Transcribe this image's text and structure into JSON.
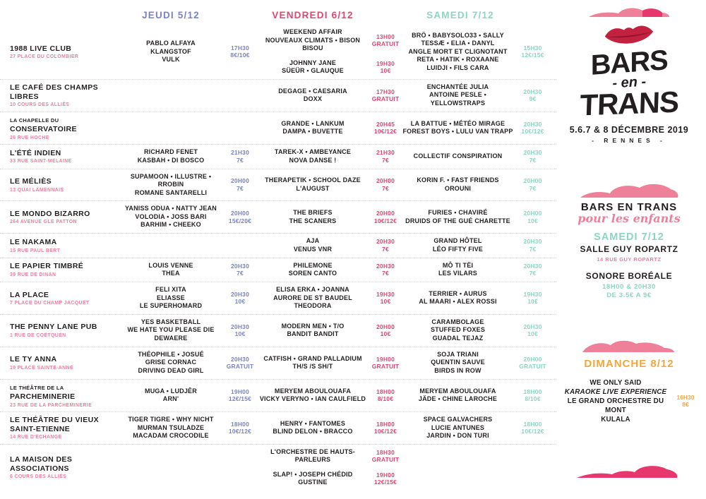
{
  "colors": {
    "jeudi": "#7b82c5",
    "vendredi": "#e2456e",
    "samedi": "#8bd5c2",
    "dimanche": "#f0a73e",
    "address": "#ee7f9b",
    "ink": "#231f20",
    "lips": "#c2223f",
    "cloud_light": "#ef8099",
    "cloud_dark": "#e6386e"
  },
  "days": [
    {
      "id": "jeudi",
      "label": "JEUDI 5/12",
      "color": "#7b82c5"
    },
    {
      "id": "vendredi",
      "label": "VENDREDI 6/12",
      "color": "#e2456e"
    },
    {
      "id": "samedi",
      "label": "SAMEDI 7/12",
      "color": "#8bd5c2"
    }
  ],
  "venues": [
    {
      "name": "1988 LIVE CLUB",
      "address": "27 PLACE DU COLOMBIER",
      "jeudi": [
        {
          "artists": [
            "PABLO ALFAYA",
            "KLANGSTOF",
            "VULK"
          ],
          "time": "17H30",
          "price": "8€/10€"
        }
      ],
      "vendredi": [
        {
          "artists": [
            "WEEKEND AFFAIR",
            "NOUVEAUX CLIMATS • BISON BISOU"
          ],
          "time": "13H00",
          "price": "GRATUIT"
        },
        {
          "artists": [
            "JOHNNY JANE",
            "SÜEÜR • GLAUQUE"
          ],
          "time": "19H30",
          "price": "10€"
        }
      ],
      "samedi": [
        {
          "artists": [
            "BRÖ • BABYSOLO33 • SALLY",
            "TESSÆ • ELIA • DANYL",
            "ANGLE MORT ET CLIGNOTANT",
            "RETA • HATIK • ROXAANE",
            "LUIDJI • FILS CARA"
          ],
          "time": "15H30",
          "price": "12€/15€"
        }
      ]
    },
    {
      "name": "LE CAFÉ DES CHAMPS LIBRES",
      "address": "10 COURS DES ALLIÉS",
      "jeudi": [],
      "vendredi": [
        {
          "artists": [
            "DEGAGE • CAESARIA",
            "DOXX"
          ],
          "time": "17H30",
          "price": "GRATUIT"
        }
      ],
      "samedi": [
        {
          "artists": [
            "ENCHANTÉE JULIA",
            "ANTOINE PESLE • YELLOWSTRAPS"
          ],
          "time": "20H30",
          "price": "9€"
        }
      ]
    },
    {
      "name_small": "LA CHAPELLE DU",
      "name": "CONSERVATOIRE",
      "address": "26 RUE HOCHE",
      "jeudi": [],
      "vendredi": [
        {
          "artists": [
            "GRANDE • LANKUM",
            "DAMPA • BUVETTE"
          ],
          "time": "20H45",
          "price": "10€/12€"
        }
      ],
      "samedi": [
        {
          "artists": [
            "LA BATTUE • MÉTÉO MIRAGE",
            "FOREST BOYS • LULU VAN TRAPP"
          ],
          "time": "20H30",
          "price": "10€/12€"
        }
      ]
    },
    {
      "name": "L'ÉTÉ INDIEN",
      "address": "33 RUE SAINT-MELAINE",
      "jeudi": [
        {
          "artists": [
            "RICHARD FENET",
            "KASBAH • DI BOSCO"
          ],
          "time": "21H30",
          "price": "7€"
        }
      ],
      "vendredi": [
        {
          "artists": [
            "TAREK-X • AMBEYANCE",
            "NOVA DANSE !"
          ],
          "time": "21H30",
          "price": "7€"
        }
      ],
      "samedi": [
        {
          "artists": [
            "COLLECTIF CONSPIRATION"
          ],
          "time": "20H30",
          "price": "7€"
        }
      ]
    },
    {
      "name": "LE MÉLIÈS",
      "address": "13 QUAI LAMENNAIS",
      "jeudi": [
        {
          "artists": [
            "SUPAMOON • ILLUSTRE • RROBIN",
            "ROMANE SANTARELLI"
          ],
          "time": "20H00",
          "price": "7€"
        }
      ],
      "vendredi": [
        {
          "artists": [
            "THERAPETIK • SCHOOL DAZE",
            "L'AUGUST"
          ],
          "time": "20H00",
          "price": "7€"
        }
      ],
      "samedi": [
        {
          "artists": [
            "KORIN F. • FAST FRIENDS",
            "OROUNI"
          ],
          "time": "20H00",
          "price": "7€"
        }
      ]
    },
    {
      "name": "LE MONDO BIZARRO",
      "address": "264 AVENUE GLE PATTON",
      "jeudi": [
        {
          "artists": [
            "YANISS ODUA • NATTY JEAN",
            "VOLODIA • JOSS BARI",
            "BARHIM • CHEEKO"
          ],
          "time": "20H00",
          "price": "15€/20€"
        }
      ],
      "vendredi": [
        {
          "artists": [
            "THE BRIEFS",
            "THE SCANERS"
          ],
          "time": "20H00",
          "price": "10€/12€"
        }
      ],
      "samedi": [
        {
          "artists": [
            "FURIES • CHAVIRÉ",
            "DRUIDS OF THE GUÉ CHARETTE"
          ],
          "time": "20H00",
          "price": "10€"
        }
      ]
    },
    {
      "name": "LE NAKAMA",
      "address": "15 RUE PAUL BERT",
      "jeudi": [],
      "vendredi": [
        {
          "artists": [
            "AJA",
            "VENUS VNR"
          ],
          "time": "20H30",
          "price": "7€"
        }
      ],
      "samedi": [
        {
          "artists": [
            "GRAND HÔTEL",
            "LÉO FIFTY FIVE"
          ],
          "time": "20H30",
          "price": "7€"
        }
      ]
    },
    {
      "name": "LE PAPIER TIMBRÉ",
      "address": "39 RUE DE DINAN",
      "jeudi": [
        {
          "artists": [
            "LOUIS VENNE",
            "THEA"
          ],
          "time": "20H30",
          "price": "7€"
        }
      ],
      "vendredi": [
        {
          "artists": [
            "PHILEMONE",
            "SOREN CANTO"
          ],
          "time": "20H30",
          "price": "7€"
        }
      ],
      "samedi": [
        {
          "artists": [
            "MÔ TI TËI",
            "LES VILARS"
          ],
          "time": "20H30",
          "price": "7€"
        }
      ]
    },
    {
      "name": "LA PLACE",
      "address": "7 PLACE DU CHAMP JACQUET",
      "jeudi": [
        {
          "artists": [
            "FELI XITA",
            "ELIASSE",
            "LE SUPERHOMARD"
          ],
          "time": "20H30",
          "price": "10€"
        }
      ],
      "vendredi": [
        {
          "artists": [
            "ELISA ERKA • JOANNA",
            "AURORE DE ST BAUDEL",
            "THEODORA"
          ],
          "time": "19H30",
          "price": "10€"
        }
      ],
      "samedi": [
        {
          "artists": [
            "TERRIER • AURUS",
            "AL MAARI • ALEX ROSSI"
          ],
          "time": "19H30",
          "price": "10€"
        }
      ]
    },
    {
      "name": "THE PENNY LANE PUB",
      "address": "1 RUE DE COËTQUEN",
      "jeudi": [
        {
          "artists": [
            "YES BASKETBALL",
            "WE HATE YOU PLEASE DIE",
            "DEWAERE"
          ],
          "time": "20H30",
          "price": "10€"
        }
      ],
      "vendredi": [
        {
          "artists": [
            "MODERN MEN • T/O",
            "BANDIT BANDIT"
          ],
          "time": "20H00",
          "price": "10€"
        }
      ],
      "samedi": [
        {
          "artists": [
            "CARAMBOLAGE",
            "STUFFED FOXES",
            "GUADAL TEJAZ"
          ],
          "time": "20H30",
          "price": "10€"
        }
      ]
    },
    {
      "name": "LE TY ANNA",
      "address": "19 PLACE SAINTE-ANNE",
      "jeudi": [
        {
          "artists": [
            "THÉOPHILE • JOSUÉ",
            "GRISE CORNAC",
            "DRIVING DEAD GIRL"
          ],
          "time": "20H30",
          "price": "GRATUIT"
        }
      ],
      "vendredi": [
        {
          "artists": [
            "CATFISH • GRAND PALLADIUM",
            "TH/S /S SH/T"
          ],
          "time": "19H00",
          "price": "GRATUIT"
        }
      ],
      "samedi": [
        {
          "artists": [
            "SOJA TRIANI",
            "QUENTIN SAUVE",
            "BIRDS IN ROW"
          ],
          "time": "20H00",
          "price": "GRATUIT"
        }
      ]
    },
    {
      "name_small": "LE THÉÂTRE DE LA",
      "name": "PARCHEMINERIE",
      "address": "23 RUE DE LA PARCHEMINERIE",
      "jeudi": [
        {
          "artists": [
            "MUGA • LUDJÊR",
            "ARN'"
          ],
          "time": "19H00",
          "price": "12€/15€"
        }
      ],
      "vendredi": [
        {
          "artists": [
            "MERYEM ABOULOUAFA",
            "VICKY VERYNO • IAN CAULFIELD"
          ],
          "time": "18H00",
          "price": "8/10€"
        }
      ],
      "samedi": [
        {
          "artists": [
            "MERYEM ABOULOUAFA",
            "JÄDE • CHINE LAROCHE"
          ],
          "time": "18H00",
          "price": "8/10€"
        }
      ]
    },
    {
      "name": "LE THÉÂTRE DU VIEUX\nSAINT-ETIENNE",
      "address": "14 RUE D'ECHANGE",
      "jeudi": [
        {
          "artists": [
            "TIGER TIGRE • WHY NICHT",
            "MURMAN TSULADZE",
            "MACADAM CROCODILE"
          ],
          "time": "18H00",
          "price": "10€/12€"
        }
      ],
      "vendredi": [
        {
          "artists": [
            "HENRY • FANTOMES",
            "BLIND DELON • BRACCO"
          ],
          "time": "18H00",
          "price": "10€/12€"
        }
      ],
      "samedi": [
        {
          "artists": [
            "SPACE GALVACHERS",
            "LUCIE ANTUNES",
            "JARDIN • DON TURI"
          ],
          "time": "18H00",
          "price": "10€/12€"
        }
      ]
    },
    {
      "name": "LA MAISON DES ASSOCIATIONS",
      "address": "6 COURS DES ALLIÉS",
      "jeudi": [],
      "vendredi": [
        {
          "artists": [
            "L'ORCHESTRE DE HAUTS-PARLEURS"
          ],
          "time": "18H30",
          "price": "GRATUIT"
        },
        {
          "artists": [
            "SLAP! • JOSEPH CHÉDID",
            "GUSTINE"
          ],
          "time": "19H00",
          "price": "12€/15€"
        }
      ],
      "samedi": []
    }
  ],
  "sidebar": {
    "logo": {
      "word1": "BARS",
      "word2": "- en -",
      "word3": "TRANS",
      "dates": "5.6.7 & 8 DÉCEMBRE 2019",
      "city": "- RENNES -"
    },
    "enfants": {
      "title": "BARS EN TRANS",
      "subtitle": "pour les enfants",
      "day": "SAMEDI 7/12",
      "venue": "SALLE GUY ROPARTZ",
      "address": "14 RUE GUY ROPARTZ",
      "show": "SONORE BORÉALE",
      "times": "18H00 & 20H30",
      "price": "DE 3.5€ A 9€"
    },
    "dimanche": {
      "title": "DIMANCHE 8/12",
      "lines": [
        "WE ONLY SAID",
        "KARAOKE LIVE EXPERIENCE",
        "LE GRAND ORCHESTRE DU MONT",
        "KULALA"
      ],
      "time": "16H30",
      "price": "8€"
    }
  }
}
